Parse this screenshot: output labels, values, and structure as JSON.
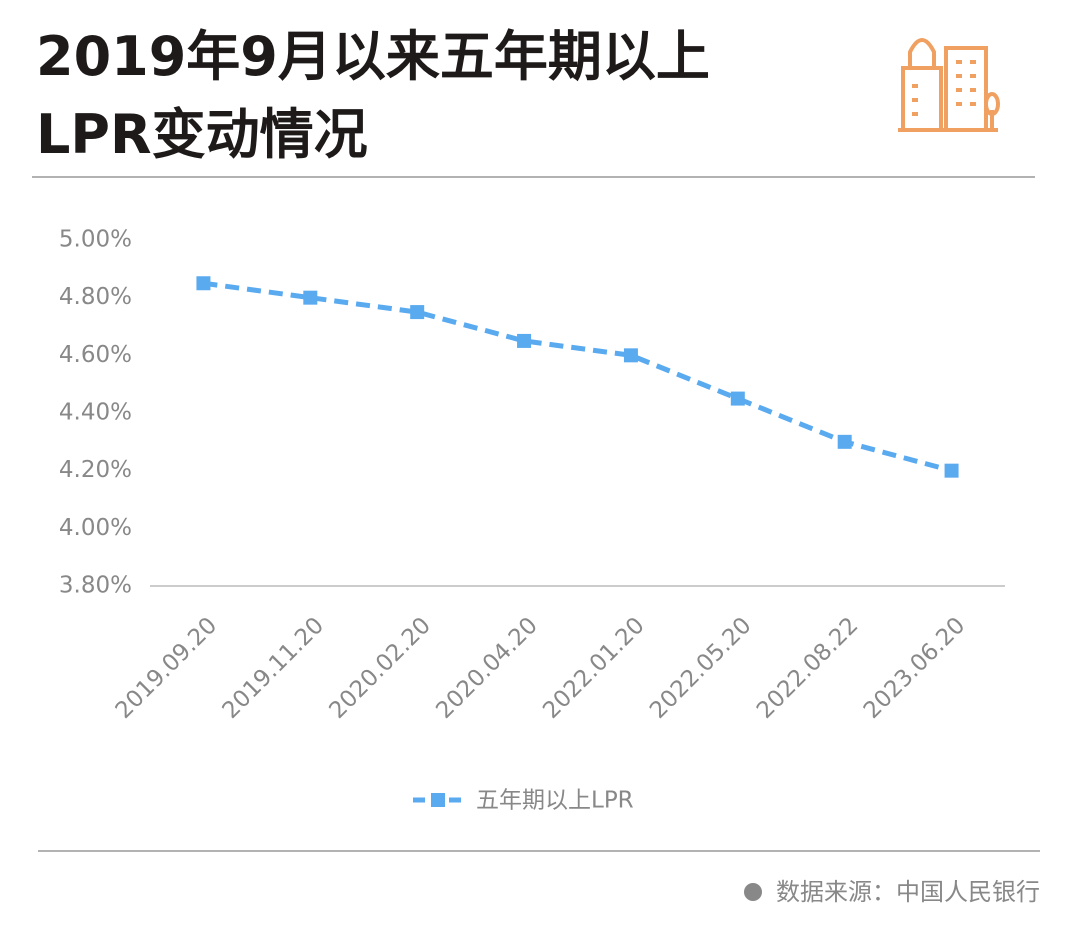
{
  "chart_data": {
    "type": "line",
    "title": "2019年9月以来五年期以上\nLPR变动情况",
    "categories": [
      "2019.09.20",
      "2019.11.20",
      "2020.02.20",
      "2020.04.20",
      "2022.01.20",
      "2022.05.20",
      "2022.08.22",
      "2023.06.20"
    ],
    "series": [
      {
        "name": "五年期以上LPR",
        "color": "#5aaaf0",
        "values": [
          4.85,
          4.8,
          4.75,
          4.65,
          4.6,
          4.45,
          4.3,
          4.2
        ]
      }
    ],
    "ylim": [
      3.8,
      5.0
    ],
    "yticks": [
      {
        "value": 3.8,
        "label": "3.80%"
      },
      {
        "value": 4.0,
        "label": "4.00%"
      },
      {
        "value": 4.2,
        "label": "4.20%"
      },
      {
        "value": 4.4,
        "label": "4.40%"
      },
      {
        "value": 4.6,
        "label": "4.60%"
      },
      {
        "value": 4.8,
        "label": "4.80%"
      },
      {
        "value": 5.0,
        "label": "5.00%"
      }
    ],
    "grid": false,
    "source": "数据来源：中国人民银行"
  }
}
